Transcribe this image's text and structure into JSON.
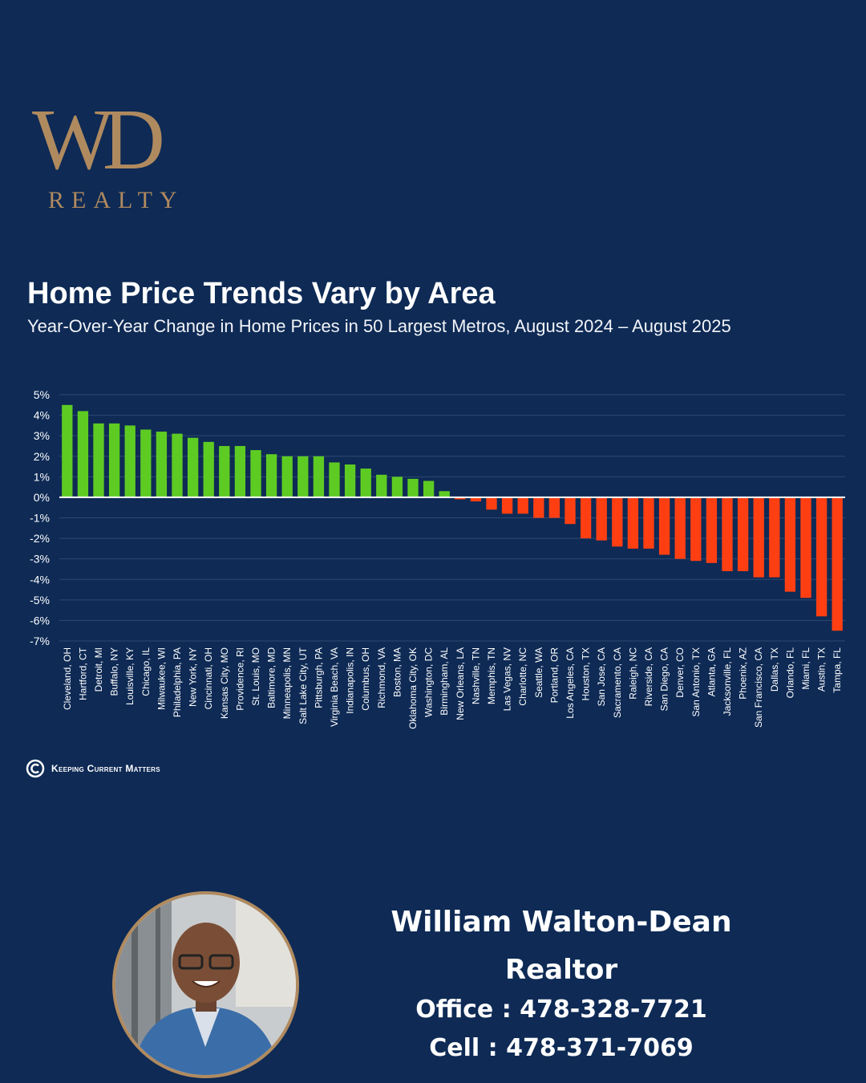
{
  "logo": {
    "mark": "WD",
    "subtext": "REALTY"
  },
  "chart_data": {
    "type": "bar",
    "title": "Home Price Trends Vary by Area",
    "subtitle": "Year-Over-Year Change in Home Prices in 50 Largest Metros, August 2024 – August 2025",
    "categories": [
      "Cleveland, OH",
      "Hartford, CT",
      "Detroit, MI",
      "Buffalo, NY",
      "Louisville, KY",
      "Chicago, IL",
      "Milwaukee, WI",
      "Philadelphia, PA",
      "New York, NY",
      "Cincinnati, OH",
      "Kansas City, MO",
      "Providence, RI",
      "St. Louis, MO",
      "Baltimore, MD",
      "Minneapolis, MN",
      "Salt Lake City, UT",
      "Pittsburgh, PA",
      "Virginia Beach, VA",
      "Indianapolis, IN",
      "Columbus, OH",
      "Richmond, VA",
      "Boston, MA",
      "Oklahoma City, OK",
      "Washington, DC",
      "Birmingham, AL",
      "New Orleans, LA",
      "Nashville, TN",
      "Memphis, TN",
      "Las Vegas, NV",
      "Charlotte, NC",
      "Seattle, WA",
      "Portland, OR",
      "Los Angeles, CA",
      "Houston, TX",
      "San Jose, CA",
      "Sacramento, CA",
      "Raleigh, NC",
      "Riverside, CA",
      "San Diego, CA",
      "Denver, CO",
      "San Antonio, TX",
      "Atlanta, GA",
      "Jacksonville, FL",
      "Phoenix, AZ",
      "San Francisco, CA",
      "Dallas, TX",
      "Orlando, FL",
      "Miami, FL",
      "Austin, TX",
      "Tampa, FL"
    ],
    "values": [
      4.5,
      4.2,
      3.6,
      3.6,
      3.5,
      3.3,
      3.2,
      3.1,
      2.9,
      2.7,
      2.5,
      2.5,
      2.3,
      2.1,
      2.0,
      2.0,
      2.0,
      1.7,
      1.6,
      1.4,
      1.1,
      1.0,
      0.9,
      0.8,
      0.3,
      -0.1,
      -0.2,
      -0.6,
      -0.8,
      -0.8,
      -1.0,
      -1.0,
      -1.3,
      -2.0,
      -2.1,
      -2.4,
      -2.5,
      -2.5,
      -2.8,
      -3.0,
      -3.1,
      -3.2,
      -3.6,
      -3.6,
      -3.9,
      -3.9,
      -4.6,
      -4.9,
      -5.8,
      -6.5
    ],
    "ylim": [
      -7,
      5
    ],
    "yticks": [
      "5%",
      "4%",
      "3%",
      "2%",
      "1%",
      "0%",
      "-1%",
      "-2%",
      "-3%",
      "-4%",
      "-5%",
      "-6%",
      "-7%"
    ],
    "ytick_values": [
      5,
      4,
      3,
      2,
      1,
      0,
      -1,
      -2,
      -3,
      -4,
      -5,
      -6,
      -7
    ],
    "colors": {
      "positive": "#5ecb23",
      "negative": "#ff3f12",
      "zero_line": "#ffffff",
      "grid": "#2f4a72"
    },
    "grid": true,
    "legend": "none"
  },
  "source": {
    "label": "Keeping Current Matters"
  },
  "agent": {
    "name": "William Walton-Dean",
    "title": "Realtor",
    "office": "Office : 478-328-7721",
    "cell": "Cell : 478-371-7069"
  }
}
